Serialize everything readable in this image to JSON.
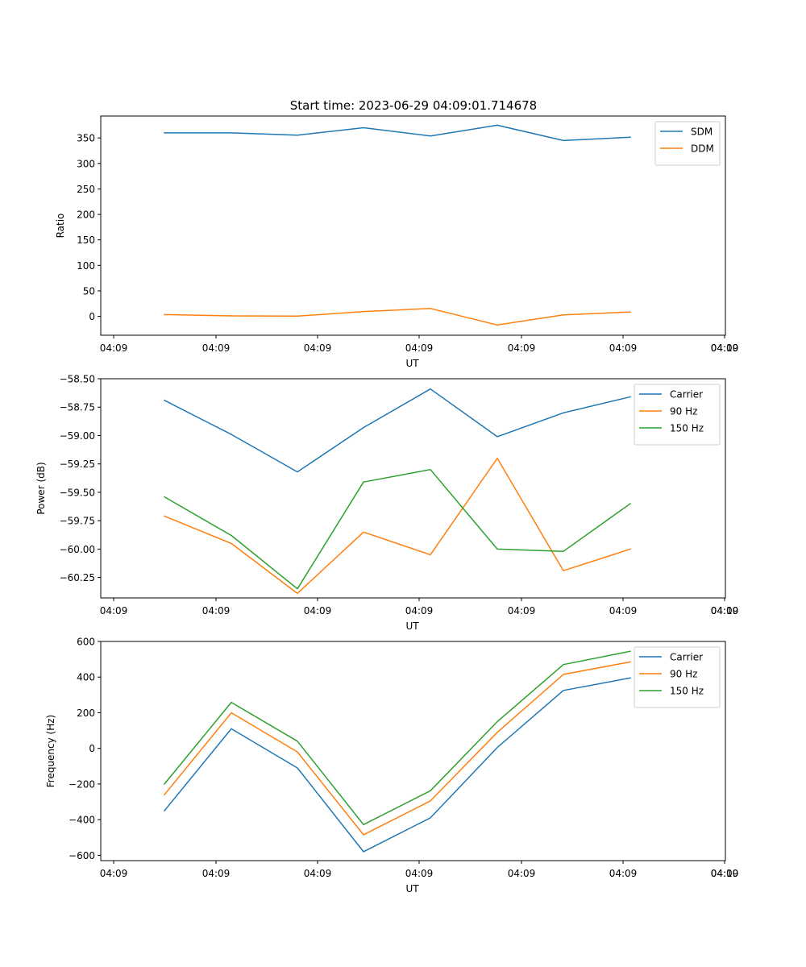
{
  "figure_title": "Start time: 2023-06-29 04:09:01.714678",
  "colors": {
    "blue": "#1f77b4",
    "orange": "#ff7f0e",
    "green": "#2ca02c"
  },
  "chart_data": [
    {
      "type": "line",
      "title": "Start time: 2023-06-29 04:09:01.714678",
      "xlabel": "UT",
      "ylabel": "Ratio",
      "x_tick_labels": [
        "04:09",
        "04:09",
        "04:09",
        "04:09",
        "04:09",
        "04:09",
        "04:09",
        "04:10"
      ],
      "y_ticks": [
        0,
        50,
        100,
        150,
        200,
        250,
        300,
        350
      ],
      "y_tick_labels": [
        "0",
        "50",
        "100",
        "150",
        "200",
        "250",
        "300",
        "350"
      ],
      "ylim": [
        -37,
        393
      ],
      "legend_position": "top-right",
      "series": [
        {
          "name": "SDM",
          "color": "#1f77b4",
          "values": [
            360,
            360,
            355.5,
            370,
            354,
            375,
            345,
            351.5
          ]
        },
        {
          "name": "DDM",
          "color": "#ff7f0e",
          "values": [
            3.5,
            1,
            0.5,
            9.5,
            15.5,
            -17,
            3,
            8.5
          ]
        }
      ]
    },
    {
      "type": "line",
      "xlabel": "UT",
      "ylabel": "Power (dB)",
      "x_tick_labels": [
        "04:09",
        "04:09",
        "04:09",
        "04:09",
        "04:09",
        "04:09",
        "04:09",
        "04:10"
      ],
      "y_ticks": [
        -58.5,
        -58.75,
        -59.0,
        -59.25,
        -59.5,
        -59.75,
        -60.0,
        -60.25
      ],
      "y_tick_labels": [
        "−58.50",
        "−58.75",
        "−59.00",
        "−59.25",
        "−59.50",
        "−59.75",
        "−60.00",
        "−60.25"
      ],
      "ylim": [
        -60.43,
        -58.5
      ],
      "legend_position": "top-right",
      "series": [
        {
          "name": "Carrier",
          "color": "#1f77b4",
          "values": [
            -58.69,
            -58.99,
            -59.32,
            -58.93,
            -58.59,
            -59.01,
            -58.8,
            -58.66
          ]
        },
        {
          "name": "90 Hz",
          "color": "#ff7f0e",
          "values": [
            -59.71,
            -59.95,
            -60.39,
            -59.85,
            -60.05,
            -59.2,
            -60.19,
            -60.0
          ]
        },
        {
          "name": "150 Hz",
          "color": "#2ca02c",
          "values": [
            -59.54,
            -59.88,
            -60.35,
            -59.41,
            -59.3,
            -60.0,
            -60.02,
            -59.6
          ]
        }
      ]
    },
    {
      "type": "line",
      "xlabel": "UT",
      "ylabel": "Frequency (Hz)",
      "x_tick_labels": [
        "04:09",
        "04:09",
        "04:09",
        "04:09",
        "04:09",
        "04:09",
        "04:09",
        "04:10"
      ],
      "y_ticks": [
        600,
        400,
        200,
        0,
        -200,
        -400,
        -600
      ],
      "y_tick_labels": [
        "600",
        "400",
        "200",
        "0",
        "−200",
        "−400",
        "−600"
      ],
      "ylim": [
        -630,
        600
      ],
      "legend_position": "top-right",
      "series": [
        {
          "name": "Carrier",
          "color": "#1f77b4",
          "values": [
            -350,
            110,
            -110,
            -580,
            -390,
            5,
            325,
            395
          ]
        },
        {
          "name": "90 Hz",
          "color": "#ff7f0e",
          "values": [
            -260,
            200,
            -20,
            -485,
            -295,
            90,
            415,
            485
          ]
        },
        {
          "name": "150 Hz",
          "color": "#2ca02c",
          "values": [
            -200,
            258,
            40,
            -428,
            -238,
            150,
            470,
            545
          ]
        }
      ]
    }
  ]
}
